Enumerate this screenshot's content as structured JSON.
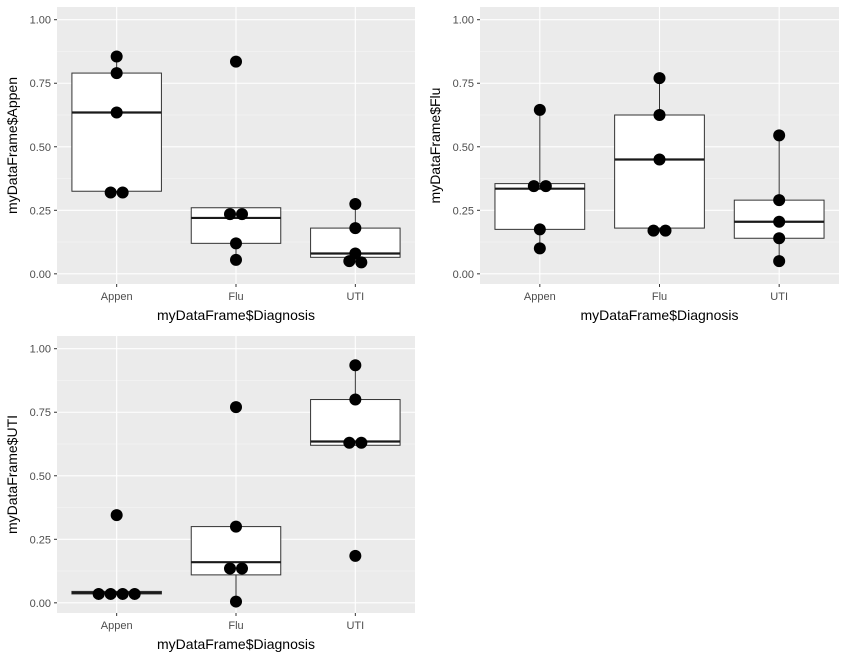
{
  "chart_data": [
    {
      "type": "boxplot",
      "xlabel": "myDataFrame$Diagnosis",
      "ylabel": "myDataFrame$Appen",
      "categories": [
        "Appen",
        "Flu",
        "UTI"
      ],
      "ylim": [
        -0.04,
        1.05
      ],
      "yticks": [
        "0.00",
        "0.25",
        "0.50",
        "0.75",
        "1.00"
      ],
      "boxes": [
        {
          "q1": 0.325,
          "median": 0.635,
          "q3": 0.79,
          "whisker_low": 0.32,
          "whisker_high": 0.855
        },
        {
          "q1": 0.12,
          "median": 0.22,
          "q3": 0.26,
          "whisker_low": 0.055,
          "whisker_high": 0.26
        },
        {
          "q1": 0.065,
          "median": 0.08,
          "q3": 0.18,
          "whisker_low": 0.045,
          "whisker_high": 0.275
        }
      ],
      "points": [
        {
          "category": "Appen",
          "values": [
            0.855,
            0.79,
            0.635,
            0.32,
            0.32
          ]
        },
        {
          "category": "Flu",
          "values": [
            0.835,
            0.235,
            0.235,
            0.12,
            0.055
          ]
        },
        {
          "category": "UTI",
          "values": [
            0.275,
            0.18,
            0.08,
            0.05,
            0.045
          ]
        }
      ]
    },
    {
      "type": "boxplot",
      "xlabel": "myDataFrame$Diagnosis",
      "ylabel": "myDataFrame$Flu",
      "categories": [
        "Appen",
        "Flu",
        "UTI"
      ],
      "ylim": [
        -0.04,
        1.05
      ],
      "yticks": [
        "0.00",
        "0.25",
        "0.50",
        "0.75",
        "1.00"
      ],
      "boxes": [
        {
          "q1": 0.175,
          "median": 0.335,
          "q3": 0.355,
          "whisker_low": 0.1,
          "whisker_high": 0.645
        },
        {
          "q1": 0.18,
          "median": 0.45,
          "q3": 0.625,
          "whisker_low": 0.17,
          "whisker_high": 0.77
        },
        {
          "q1": 0.14,
          "median": 0.205,
          "q3": 0.29,
          "whisker_low": 0.05,
          "whisker_high": 0.545
        }
      ],
      "points": [
        {
          "category": "Appen",
          "values": [
            0.645,
            0.345,
            0.345,
            0.175,
            0.1
          ]
        },
        {
          "category": "Flu",
          "values": [
            0.77,
            0.625,
            0.45,
            0.17,
            0.17
          ]
        },
        {
          "category": "UTI",
          "values": [
            0.545,
            0.29,
            0.205,
            0.14,
            0.05
          ]
        }
      ]
    },
    {
      "type": "boxplot",
      "xlabel": "myDataFrame$Diagnosis",
      "ylabel": "myDataFrame$UTI",
      "categories": [
        "Appen",
        "Flu",
        "UTI"
      ],
      "ylim": [
        -0.04,
        1.05
      ],
      "yticks": [
        "0.00",
        "0.25",
        "0.50",
        "0.75",
        "1.00"
      ],
      "boxes": [
        {
          "q1": 0.035,
          "median": 0.04,
          "q3": 0.045,
          "whisker_low": 0.03,
          "whisker_high": 0.045
        },
        {
          "q1": 0.11,
          "median": 0.16,
          "q3": 0.3,
          "whisker_low": 0.005,
          "whisker_high": 0.3
        },
        {
          "q1": 0.62,
          "median": 0.635,
          "q3": 0.8,
          "whisker_low": 0.62,
          "whisker_high": 0.935
        }
      ],
      "points": [
        {
          "category": "Appen",
          "values": [
            0.345,
            0.035,
            0.035,
            0.035,
            0.035
          ]
        },
        {
          "category": "Flu",
          "values": [
            0.77,
            0.3,
            0.135,
            0.135,
            0.005
          ]
        },
        {
          "category": "UTI",
          "values": [
            0.935,
            0.8,
            0.63,
            0.63,
            0.185
          ]
        }
      ]
    }
  ]
}
